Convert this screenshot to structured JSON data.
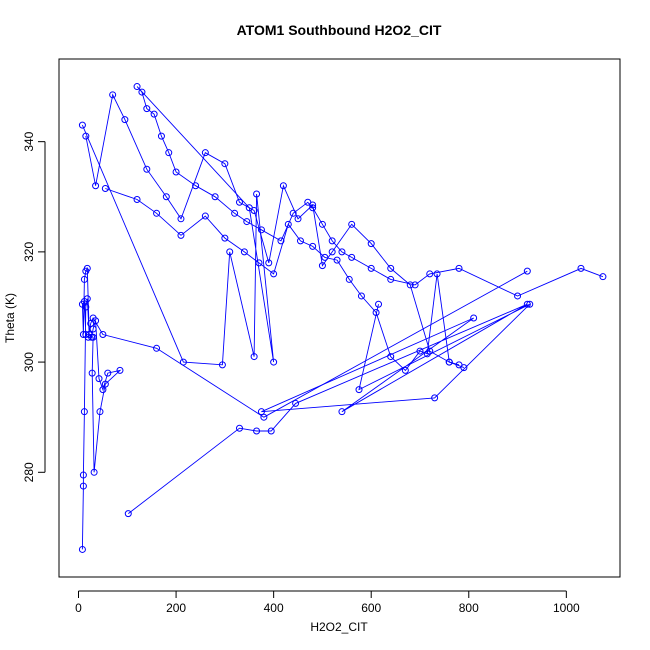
{
  "chart_data": {
    "type": "scatter",
    "title": "ATOM1 Southbound H2O2_CIT",
    "xlabel": "H2O2_CIT",
    "ylabel": "Theta (K)",
    "xlim": [
      -40,
      1110
    ],
    "ylim": [
      261,
      355
    ],
    "xticks": [
      0,
      200,
      400,
      600,
      800,
      1000
    ],
    "yticks": [
      280,
      300,
      320,
      340
    ],
    "grid": false,
    "color": "#0000ff",
    "marker": "open-circle",
    "connected": true,
    "series": [
      {
        "x": [
          8,
          10,
          10,
          12,
          15,
          18,
          22,
          27,
          30,
          35,
          42,
          50,
          60,
          85,
          55,
          44,
          32,
          28,
          30,
          22,
          18,
          15,
          12,
          10,
          8,
          12,
          15,
          20,
          25,
          30,
          50,
          160,
          380,
          920
        ],
        "y": [
          266,
          277.5,
          279.5,
          291,
          310,
          311.5,
          305,
          304.5,
          306,
          307.5,
          297,
          295,
          298,
          298.5,
          296,
          291,
          280,
          298,
          304.5,
          305,
          317,
          316.5,
          315,
          305,
          310.5,
          311,
          305,
          304.5,
          307,
          308,
          305,
          302.5,
          290,
          316.5
        ]
      },
      {
        "x": [
          102,
          330,
          365,
          395,
          445,
          920,
          540,
          810,
          375,
          730,
          925,
          575,
          615
        ],
        "y": [
          272.5,
          288,
          287.5,
          287.5,
          292.5,
          310.5,
          291,
          308,
          291,
          293.5,
          310.5,
          295,
          310.5
        ]
      },
      {
        "x": [
          8,
          215,
          295,
          310,
          360,
          365,
          400,
          350,
          120,
          130,
          140,
          155,
          170,
          185,
          200,
          240,
          280,
          320,
          345,
          375,
          415,
          440,
          470,
          480,
          500,
          520,
          540,
          560,
          600,
          640,
          690,
          720,
          780,
          900,
          1030,
          1075
        ],
        "y": [
          343,
          300,
          299.5,
          320,
          301,
          330.5,
          300,
          328,
          350,
          349,
          346,
          345,
          341,
          338,
          334.5,
          332,
          330,
          327,
          325.5,
          324,
          322,
          327,
          329,
          328,
          325,
          322,
          320,
          319,
          317,
          315,
          314,
          316,
          317,
          312,
          317,
          315.5
        ]
      },
      {
        "x": [
          15,
          35,
          70,
          95,
          140,
          180,
          210,
          260,
          300,
          330,
          360,
          390,
          420,
          450,
          480,
          500,
          520,
          560,
          600,
          640,
          680,
          720,
          760,
          790
        ],
        "y": [
          341,
          332,
          348.5,
          344,
          335,
          330,
          326,
          338,
          336,
          329,
          327.5,
          318,
          332,
          326,
          328.5,
          317.5,
          320,
          325,
          321.5,
          317,
          314,
          302,
          300,
          299
        ]
      },
      {
        "x": [
          55,
          120,
          160,
          210,
          260,
          300,
          340,
          370,
          400,
          430,
          455,
          480,
          505,
          530,
          555,
          580,
          610,
          640,
          670,
          700,
          715,
          735,
          760,
          780
        ],
        "y": [
          331.5,
          329.5,
          327,
          323,
          326.5,
          322.5,
          320,
          318,
          316,
          325,
          322,
          321,
          319,
          318.5,
          315,
          312,
          309,
          301,
          298.5,
          302,
          301.5,
          316,
          300,
          299.5
        ]
      }
    ]
  }
}
